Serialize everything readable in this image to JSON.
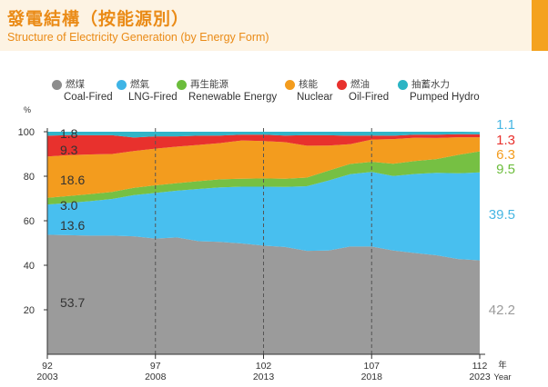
{
  "header": {
    "title_zh": "發電結構（按能源別）",
    "title_en": "Structure of Electricity Generation (by Energy Form)"
  },
  "legend": [
    {
      "zh": "燃煤",
      "en": "Coal-Fired",
      "icon": "coal-icon",
      "color": "#8c8c8c"
    },
    {
      "zh": "燃氣",
      "en": "LNG-Fired",
      "icon": "gas-flame-icon",
      "color": "#3eb4e6"
    },
    {
      "zh": "再生能源",
      "en": "Renewable Energy",
      "icon": "recycle-icon",
      "color": "#6cbd3c"
    },
    {
      "zh": "核能",
      "en": "Nuclear",
      "icon": "radiation-icon",
      "color": "#f39c1e"
    },
    {
      "zh": "燃油",
      "en": "Oil-Fired",
      "icon": "oil-drop-icon",
      "color": "#e8312d"
    },
    {
      "zh": "抽蓄水力",
      "en": "Pumped Hydro",
      "icon": "water-drop-icon",
      "color": "#2bb4c4"
    }
  ],
  "chart_data": {
    "type": "area",
    "stacked": true,
    "xlabel": "年 Year",
    "ylabel": "%",
    "ylim": [
      0,
      100
    ],
    "yticks": [
      20,
      40,
      60,
      80,
      100
    ],
    "x": [
      2003,
      2004,
      2005,
      2006,
      2007,
      2008,
      2009,
      2010,
      2011,
      2012,
      2013,
      2014,
      2015,
      2016,
      2017,
      2018,
      2019,
      2020,
      2021,
      2022,
      2023
    ],
    "xticks": [
      {
        "x": 2003,
        "roc": "92",
        "ad": "2003"
      },
      {
        "x": 2008,
        "roc": "97",
        "ad": "2008"
      },
      {
        "x": 2013,
        "roc": "102",
        "ad": "2013"
      },
      {
        "x": 2018,
        "roc": "107",
        "ad": "2018"
      },
      {
        "x": 2023,
        "roc": "112",
        "ad": "2023"
      }
    ],
    "dashed_years": [
      2008,
      2013,
      2018
    ],
    "series": [
      {
        "name": "Coal-Fired",
        "color": "#9b9b9b",
        "values": [
          53.7,
          53.5,
          53.3,
          53.3,
          53.0,
          52.0,
          52.5,
          50.8,
          50.5,
          49.8,
          48.8,
          48.2,
          46.5,
          46.6,
          48.4,
          48.4,
          46.6,
          45.5,
          44.5,
          42.8,
          42.2
        ]
      },
      {
        "name": "LNG-Fired",
        "color": "#48bfef",
        "values": [
          13.6,
          14.5,
          15.5,
          16.5,
          18.5,
          20.5,
          21.0,
          23.5,
          24.5,
          25.5,
          26.5,
          27.0,
          29.0,
          31.5,
          32.5,
          33.5,
          33.5,
          35.5,
          37.0,
          38.5,
          39.5
        ]
      },
      {
        "name": "Renewable Energy",
        "color": "#76c043",
        "values": [
          3.0,
          3.1,
          3.2,
          3.2,
          3.3,
          3.4,
          3.4,
          3.5,
          3.6,
          3.6,
          3.7,
          3.7,
          3.9,
          4.4,
          4.6,
          4.6,
          5.5,
          5.8,
          6.2,
          8.3,
          9.5
        ]
      },
      {
        "name": "Nuclear",
        "color": "#f39c1e",
        "values": [
          18.6,
          18.4,
          17.8,
          17.0,
          16.5,
          16.5,
          16.4,
          16.3,
          16.3,
          17.2,
          16.8,
          16.4,
          14.3,
          11.3,
          8.9,
          10.0,
          11.1,
          10.5,
          9.5,
          7.9,
          6.3
        ]
      },
      {
        "name": "Oil-Fired",
        "color": "#e8312d",
        "values": [
          9.3,
          9.0,
          8.6,
          8.4,
          6.1,
          5.5,
          4.6,
          4.1,
          3.4,
          2.6,
          2.9,
          3.0,
          4.8,
          4.6,
          3.8,
          1.8,
          1.5,
          1.4,
          1.5,
          1.4,
          1.3
        ]
      },
      {
        "name": "Pumped Hydro",
        "color": "#31b5c8",
        "values": [
          1.8,
          1.5,
          1.6,
          1.6,
          2.6,
          2.1,
          2.1,
          1.8,
          1.7,
          1.3,
          1.3,
          1.7,
          1.5,
          1.6,
          1.8,
          1.7,
          1.8,
          1.3,
          1.3,
          1.1,
          1.1
        ]
      }
    ],
    "start_labels": [
      {
        "series": "Pumped Hydro",
        "text": "1.8",
        "color": "#333333"
      },
      {
        "series": "Oil-Fired",
        "text": "9.3",
        "color": "#333333"
      },
      {
        "series": "Nuclear",
        "text": "18.6",
        "color": "#333333"
      },
      {
        "series": "Renewable Energy",
        "text": "3.0",
        "color": "#333333"
      },
      {
        "series": "LNG-Fired",
        "text": "13.6",
        "color": "#333333"
      },
      {
        "series": "Coal-Fired",
        "text": "53.7",
        "color": "#333333"
      }
    ],
    "end_labels": [
      {
        "series": "Pumped Hydro",
        "text": "1.1",
        "color": "#46b6e3"
      },
      {
        "series": "Oil-Fired",
        "text": "1.3",
        "color": "#e8312d"
      },
      {
        "series": "Nuclear",
        "text": "6.3",
        "color": "#f39c1e"
      },
      {
        "series": "Renewable Energy",
        "text": "9.5",
        "color": "#6cbd3c"
      },
      {
        "series": "LNG-Fired",
        "text": "39.5",
        "color": "#46b6e3"
      },
      {
        "series": "Coal-Fired",
        "text": "42.2",
        "color": "#9b9b9b"
      }
    ]
  }
}
